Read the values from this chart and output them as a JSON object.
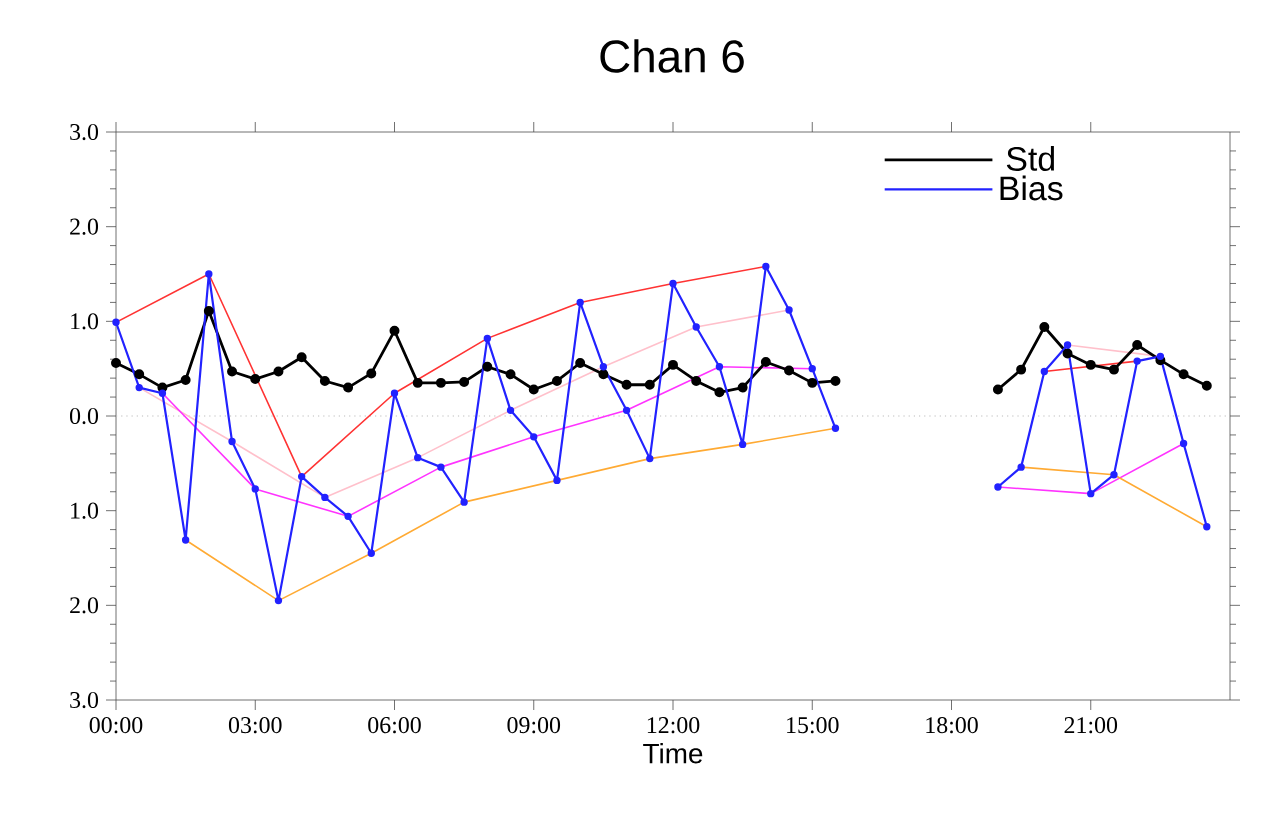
{
  "chart_data": {
    "type": "line",
    "title": "Chan 6",
    "xlabel": "Time",
    "xlim": [
      0,
      24
    ],
    "xticks": [
      {
        "value": 0,
        "label": "00:00"
      },
      {
        "value": 3,
        "label": "03:00"
      },
      {
        "value": 6,
        "label": "06:00"
      },
      {
        "value": 9,
        "label": "09:00"
      },
      {
        "value": 12,
        "label": "12:00"
      },
      {
        "value": 15,
        "label": "15:00"
      },
      {
        "value": 18,
        "label": "18:00"
      },
      {
        "value": 21,
        "label": "21:00"
      }
    ],
    "ylim": [
      -3,
      3
    ],
    "yticks": [
      {
        "value": -3,
        "label": "3.0"
      },
      {
        "value": -2,
        "label": "2.0"
      },
      {
        "value": -1,
        "label": "1.0"
      },
      {
        "value": 0,
        "label": "0.0"
      },
      {
        "value": 1,
        "label": "1.0"
      },
      {
        "value": 2,
        "label": "2.0"
      },
      {
        "value": 3,
        "label": "3.0"
      }
    ],
    "grid": false,
    "legend": "top right",
    "marker": "circle",
    "ref_lines": [
      {
        "axis": "y",
        "value": 0,
        "color": "#bbbbbb",
        "line_style": "dotted"
      }
    ],
    "series": [
      {
        "color": "#ff3333",
        "marker": "none",
        "x": [
          0,
          2,
          4,
          6,
          8,
          10,
          12,
          14,
          17,
          20,
          22
        ],
        "values": [
          0.99,
          1.5,
          -0.64,
          0.24,
          0.82,
          1.2,
          1.4,
          1.58,
          null,
          0.47,
          0.58
        ]
      },
      {
        "color": "#ffc0cb",
        "marker": "none",
        "x": [
          0.5,
          2.5,
          4.5,
          6.5,
          8.5,
          10.5,
          12.5,
          14.5,
          17,
          20.5,
          22.5
        ],
        "values": [
          0.3,
          -0.27,
          -0.86,
          -0.44,
          0.06,
          0.52,
          0.94,
          1.12,
          null,
          0.75,
          0.63
        ]
      },
      {
        "color": "#ff33ff",
        "marker": "none",
        "x": [
          1,
          3,
          5,
          7,
          9,
          11,
          13,
          15,
          17,
          19,
          21,
          23
        ],
        "values": [
          0.24,
          -0.77,
          -1.06,
          -0.54,
          -0.22,
          0.06,
          0.52,
          0.5,
          null,
          -0.75,
          -0.82,
          -0.29
        ]
      },
      {
        "color": "#ffaa33",
        "marker": "none",
        "x": [
          1.5,
          3.5,
          5.5,
          7.5,
          9.5,
          11.5,
          13.5,
          15.5,
          17,
          19.5,
          21.5,
          23.5
        ],
        "values": [
          -1.31,
          -1.95,
          -1.45,
          -0.91,
          -0.68,
          -0.45,
          -0.3,
          -0.13,
          null,
          -0.54,
          -0.62,
          -1.17
        ]
      },
      {
        "name": "Std",
        "color": "#000000",
        "x": [
          0,
          0.5,
          1,
          1.5,
          2,
          2.5,
          3,
          3.5,
          4,
          4.5,
          5,
          5.5,
          6,
          6.5,
          7,
          7.5,
          8,
          8.5,
          9,
          9.5,
          10,
          10.5,
          11,
          11.5,
          12,
          12.5,
          13,
          13.5,
          14,
          14.5,
          15,
          15.5,
          17,
          19,
          19.5,
          20,
          20.5,
          21,
          21.5,
          22,
          22.5,
          23,
          23.5
        ],
        "values": [
          0.56,
          0.44,
          0.3,
          0.38,
          1.11,
          0.47,
          0.39,
          0.47,
          0.62,
          0.37,
          0.3,
          0.45,
          0.9,
          0.35,
          0.35,
          0.36,
          0.52,
          0.44,
          0.28,
          0.37,
          0.56,
          0.44,
          0.33,
          0.33,
          0.54,
          0.37,
          0.25,
          0.3,
          0.57,
          0.48,
          0.35,
          0.37,
          null,
          0.28,
          0.49,
          0.94,
          0.66,
          0.54,
          0.49,
          0.75,
          0.59,
          0.44,
          0.32
        ]
      },
      {
        "name": "Bias",
        "color": "#2222ff",
        "x": [
          0,
          0.5,
          1,
          1.5,
          2,
          2.5,
          3,
          3.5,
          4,
          4.5,
          5,
          5.5,
          6,
          6.5,
          7,
          7.5,
          8,
          8.5,
          9,
          9.5,
          10,
          10.5,
          11,
          11.5,
          12,
          12.5,
          13,
          13.5,
          14,
          14.5,
          15,
          15.5,
          17,
          19,
          19.5,
          20,
          20.5,
          21,
          21.5,
          22,
          22.5,
          23,
          23.5
        ],
        "values": [
          0.99,
          0.3,
          0.24,
          -1.31,
          1.5,
          -0.27,
          -0.77,
          -1.95,
          -0.64,
          -0.86,
          -1.06,
          -1.45,
          0.24,
          -0.44,
          -0.54,
          -0.91,
          0.82,
          0.06,
          -0.22,
          -0.68,
          1.2,
          0.52,
          0.06,
          -0.45,
          1.4,
          0.94,
          0.52,
          -0.3,
          1.58,
          1.12,
          0.5,
          -0.13,
          null,
          -0.75,
          -0.54,
          0.47,
          0.75,
          -0.82,
          -0.62,
          0.58,
          0.63,
          -0.29,
          -1.17
        ]
      }
    ]
  }
}
